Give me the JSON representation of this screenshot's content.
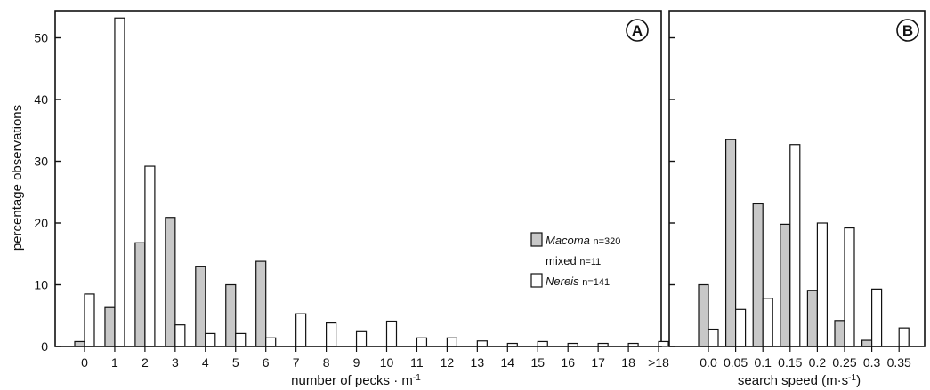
{
  "chart_data": [
    {
      "type": "bar",
      "panel_label": "A",
      "xlabel": "number of pecks",
      "xlabel_unit": "m",
      "xlabel_sup": "-1",
      "ylabel": "percentage observations",
      "ylim": [
        0,
        55
      ],
      "yticks": [
        "0",
        "10",
        "20",
        "30",
        "40",
        "50"
      ],
      "categories": [
        "0",
        "1",
        "2",
        "3",
        "4",
        "5",
        "6",
        "7",
        "8",
        "9",
        "10",
        "11",
        "12",
        "13",
        "14",
        "15",
        "16",
        "17",
        "18",
        ">18"
      ],
      "series": [
        {
          "name": "Macoma",
          "values": [
            0.8,
            6.3,
            16.8,
            20.9,
            13.0,
            10.0,
            13.8,
            0,
            0,
            0,
            0,
            0,
            0,
            0,
            0,
            0,
            0,
            0,
            0,
            0
          ]
        },
        {
          "name": "Nereis",
          "values": [
            8.5,
            53.2,
            29.2,
            3.5,
            2.1,
            2.1,
            1.4,
            5.3,
            3.8,
            2.4,
            4.1,
            1.4,
            1.4,
            0.9,
            0.5,
            0.8,
            0.5,
            0.5,
            0.5,
            0.8
          ]
        }
      ],
      "legend": [
        {
          "name": "Macoma",
          "n": "n=320",
          "style": "shaded"
        },
        {
          "name": "mixed",
          "n": "n=11",
          "style": "none"
        },
        {
          "name": "Nereis",
          "n": "n=141",
          "style": "open"
        }
      ]
    },
    {
      "type": "bar",
      "panel_label": "B",
      "xlabel": "search speed",
      "xlabel_unit": "(m",
      "xlabel_unit2": "s",
      "xlabel_sup": "-1",
      "xlabel_close": ")",
      "ylim": [
        0,
        55
      ],
      "categories": [
        "0.0",
        "0.05",
        "0.1",
        "0.15",
        "0.2",
        "0.25",
        "0.3",
        "0.35"
      ],
      "series": [
        {
          "name": "Macoma",
          "values": [
            10.0,
            33.5,
            23.1,
            19.8,
            9.1,
            4.2,
            1.0,
            0
          ]
        },
        {
          "name": "Nereis",
          "values": [
            2.8,
            6.0,
            7.8,
            32.7,
            20.0,
            19.2,
            9.3,
            3.0
          ]
        }
      ]
    }
  ],
  "colors": {
    "macoma_fill": "#c8c8c8",
    "nereis_fill": "#ffffff",
    "stroke": "#111111"
  }
}
